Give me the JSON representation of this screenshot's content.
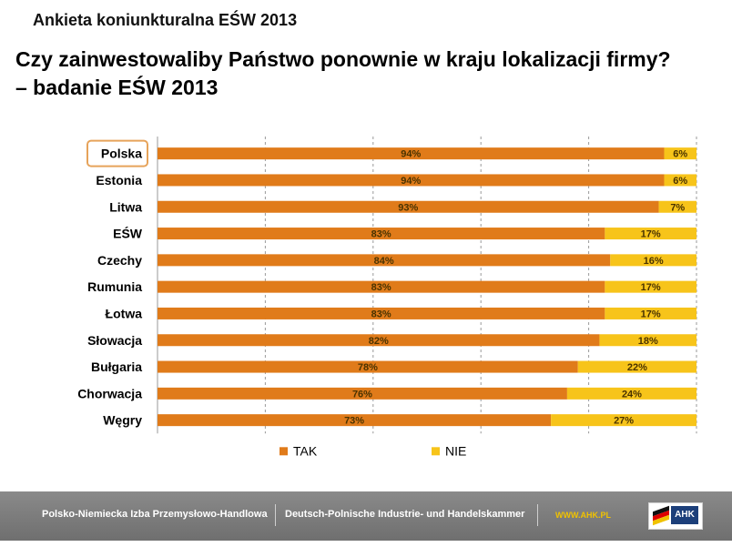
{
  "header": {
    "supertitle": "Ankieta koniunkturalna EŚW 2013",
    "title_line1": "Czy zainwestowaliby Państwo ponownie w kraju lokalizacji firmy?",
    "title_line2": "– badanie EŚW 2013"
  },
  "chart_data": {
    "type": "bar",
    "orientation": "horizontal",
    "stacked": true,
    "highlighted_category": "Polska",
    "categories": [
      "Polska",
      "Estonia",
      "Litwa",
      "EŚW",
      "Czechy",
      "Rumunia",
      "Łotwa",
      "Słowacja",
      "Bułgaria",
      "Chorwacja",
      "Węgry"
    ],
    "series": [
      {
        "name": "TAK",
        "color": "#e07b1a",
        "values": [
          94,
          94,
          93,
          83,
          84,
          83,
          83,
          82,
          78,
          76,
          73
        ],
        "labels": [
          "94%",
          "94%",
          "93%",
          "83%",
          "84%",
          "83%",
          "83%",
          "82%",
          "78%",
          "76%",
          "73%"
        ]
      },
      {
        "name": "NIE",
        "color": "#f7c41a",
        "values": [
          6,
          6,
          7,
          17,
          16,
          17,
          17,
          18,
          22,
          24,
          27
        ],
        "labels": [
          "6%",
          "6%",
          "7%",
          "17%",
          "16%",
          "17%",
          "17%",
          "18%",
          "22%",
          "24%",
          "27%"
        ]
      }
    ],
    "xlim": [
      0,
      100
    ],
    "grid": "vertical dashed",
    "legend_position": "bottom"
  },
  "footer": {
    "org_pl": "Polsko-Niemiecka Izba Przemysłowo-Handlowa",
    "org_de": "Deutsch-Polnische Industrie- und Handelskammer",
    "url": "WWW.AHK.PL",
    "logo_text": "AHK"
  }
}
